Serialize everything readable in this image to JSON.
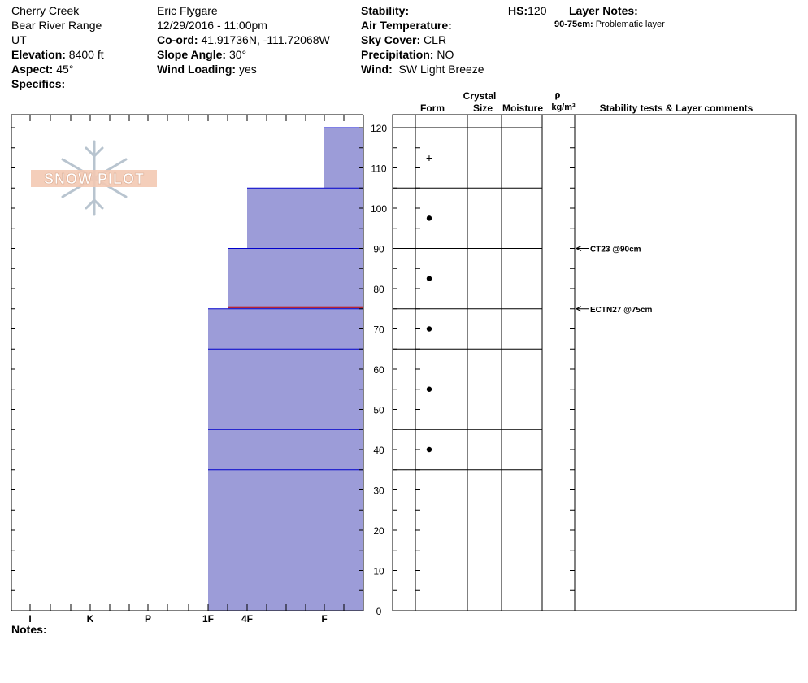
{
  "header": {
    "col1": {
      "location": "Cherry Creek",
      "range": "Bear River Range",
      "state": "UT",
      "elevation_label": "Elevation:",
      "elevation": "8400 ft",
      "aspect_label": "Aspect:",
      "aspect": "45°",
      "specifics_label": "Specifics:"
    },
    "col2": {
      "observer": "Eric Flygare",
      "datetime": "12/29/2016 - 11:00pm",
      "coord_label": "Co-ord:",
      "coord": "41.91736N, -111.72068W",
      "slope_label": "Slope Angle:",
      "slope": "30°",
      "wind_loading_label": "Wind Loading:",
      "wind_loading": "yes"
    },
    "col3": {
      "stability_label": "Stability:",
      "air_temp_label": "Air Temperature:",
      "sky_label": "Sky Cover:",
      "sky": "CLR",
      "precip_label": "Precipitation:",
      "precip": "NO",
      "wind_label": "Wind:",
      "wind": "SW Light Breeze"
    },
    "hs_label": "HS:",
    "hs": "120",
    "layer_notes_label": "Layer Notes:",
    "layer_note_range": "90-75cm:",
    "layer_note_text": "Problematic layer"
  },
  "logo": {
    "text": "SNOW PILOT"
  },
  "columns": {
    "crystal": "Crystal",
    "form": "Form",
    "size": "Size",
    "moisture": "Moisture",
    "rho": "ρ",
    "density": "kg/m³",
    "comments": "Stability tests & Layer comments"
  },
  "notes_label": "Notes:",
  "chart_data": {
    "type": "bar",
    "description_axis_y": "height (cm)",
    "ylim": [
      0,
      120
    ],
    "yticks": [
      0,
      10,
      20,
      30,
      40,
      50,
      60,
      70,
      80,
      90,
      100,
      110,
      120
    ],
    "hardness_scale": [
      "I",
      "K",
      "P",
      "1F",
      "4F",
      "F"
    ],
    "layers": [
      {
        "top": 120,
        "bottom": 105,
        "hardness": "F",
        "form": "+"
      },
      {
        "top": 105,
        "bottom": 90,
        "hardness": "4F",
        "form": "•"
      },
      {
        "top": 90,
        "bottom": 75,
        "hardness": "1F+",
        "form": "•"
      },
      {
        "top": 75,
        "bottom": 65,
        "hardness": "1F",
        "form": "•"
      },
      {
        "top": 65,
        "bottom": 45,
        "hardness": "1F",
        "form": "•"
      },
      {
        "top": 45,
        "bottom": 35,
        "hardness": "1F",
        "form": "•"
      },
      {
        "top": 35,
        "bottom": 0,
        "hardness": "1F",
        "form": ""
      }
    ],
    "problem_layer_height": 75,
    "tests": [
      {
        "height": 90,
        "label": "CT23 @90cm"
      },
      {
        "height": 75,
        "label": "ECTN27 @75cm"
      }
    ],
    "colors": {
      "fill": "#9c9cd8",
      "layer_line": "#0000cc",
      "problem_line": "#c00000"
    }
  }
}
